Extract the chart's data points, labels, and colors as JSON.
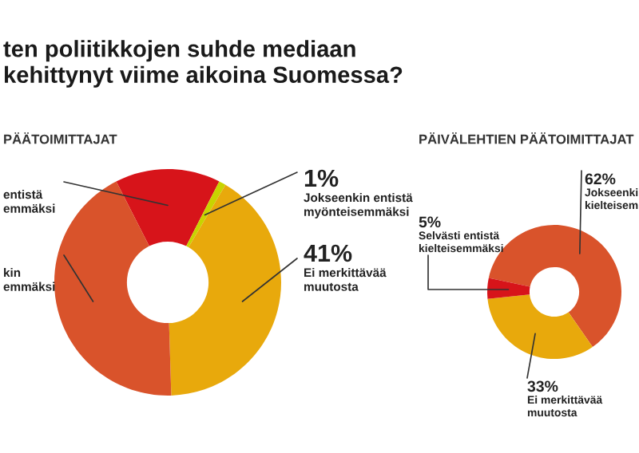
{
  "chart_data": [
    {
      "type": "donut",
      "title": "ten poliitikkojen suhde mediaan\nkehittynyt viime aikoina Suomessa?",
      "subtitle": "PÄÄTOIMITTAJAT",
      "categories": [
        "entistä\nemmäksi",
        "Jokseenkin entistä\nmyönteisemmäksi",
        "Ei merkittävää\nmuutosta",
        "kin\nemmäksi"
      ],
      "values": [
        15,
        1,
        41,
        43
      ],
      "value_labels": [
        null,
        "1%",
        "41%",
        null
      ],
      "colors": [
        "#d7141a",
        "#c8d400",
        "#e8a90c",
        "#d9532b"
      ]
    },
    {
      "type": "donut",
      "title": "PÄIVÄLEHTIEN PÄÄTOIMITTAJAT",
      "categories": [
        "Jokseenki\nkielteisem",
        "Ei merkittävää\nmuutosta",
        "Selvästi entistä\nkielteisemmäksi"
      ],
      "values": [
        62,
        33,
        5
      ],
      "value_labels": [
        "62%",
        "33%",
        "5%"
      ],
      "colors": [
        "#d9532b",
        "#e8a90c",
        "#d7141a"
      ]
    }
  ]
}
